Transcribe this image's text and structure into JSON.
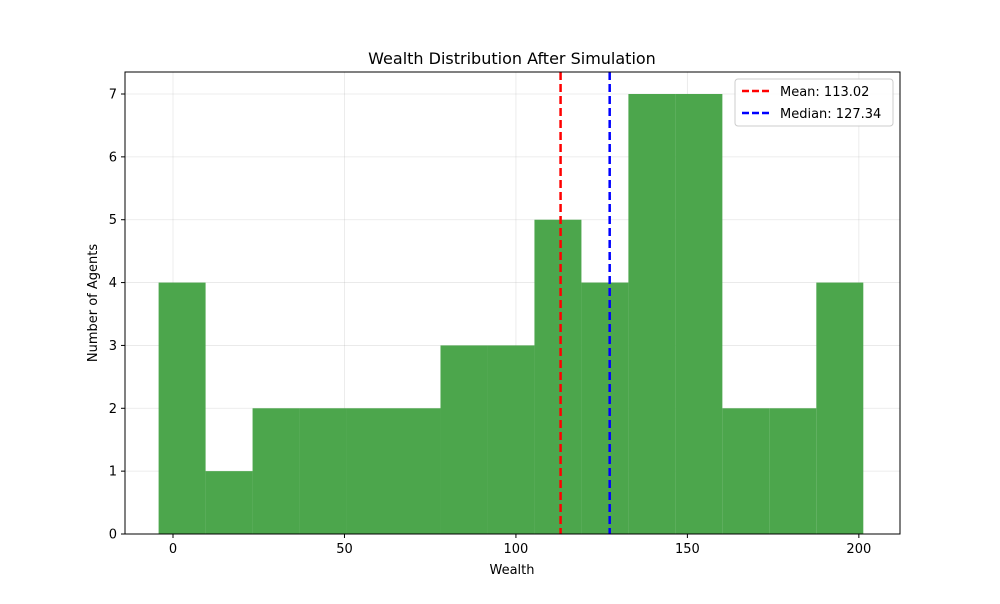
{
  "chart_data": {
    "type": "bar",
    "title": "Wealth Distribution After Simulation",
    "xlabel": "Wealth",
    "ylabel": "Number of Agents",
    "xlim": [
      -14,
      212
    ],
    "ylim": [
      0,
      7.35
    ],
    "xticks": [
      0,
      50,
      100,
      150,
      200
    ],
    "yticks": [
      0,
      1,
      2,
      3,
      4,
      5,
      6,
      7
    ],
    "grid": true,
    "bar_color": "#4ca64c",
    "bins": [
      {
        "start": -4.2,
        "end": 9.5,
        "count": 4
      },
      {
        "start": 9.5,
        "end": 23.2,
        "count": 1
      },
      {
        "start": 23.2,
        "end": 36.9,
        "count": 2
      },
      {
        "start": 36.9,
        "end": 50.6,
        "count": 2
      },
      {
        "start": 50.6,
        "end": 64.3,
        "count": 2
      },
      {
        "start": 64.3,
        "end": 78.0,
        "count": 2
      },
      {
        "start": 78.0,
        "end": 91.7,
        "count": 3
      },
      {
        "start": 91.7,
        "end": 105.4,
        "count": 3
      },
      {
        "start": 105.4,
        "end": 119.1,
        "count": 5
      },
      {
        "start": 119.1,
        "end": 132.8,
        "count": 4
      },
      {
        "start": 132.8,
        "end": 146.5,
        "count": 7
      },
      {
        "start": 146.5,
        "end": 160.2,
        "count": 7
      },
      {
        "start": 160.2,
        "end": 173.9,
        "count": 2
      },
      {
        "start": 173.9,
        "end": 187.6,
        "count": 2
      },
      {
        "start": 187.6,
        "end": 201.3,
        "count": 4
      }
    ],
    "reference_lines": [
      {
        "name": "Mean: 113.02",
        "value": 113.02,
        "color": "#ff0000"
      },
      {
        "name": "Median: 127.34",
        "value": 127.34,
        "color": "#0000ff"
      }
    ],
    "legend_position": "top-right"
  }
}
